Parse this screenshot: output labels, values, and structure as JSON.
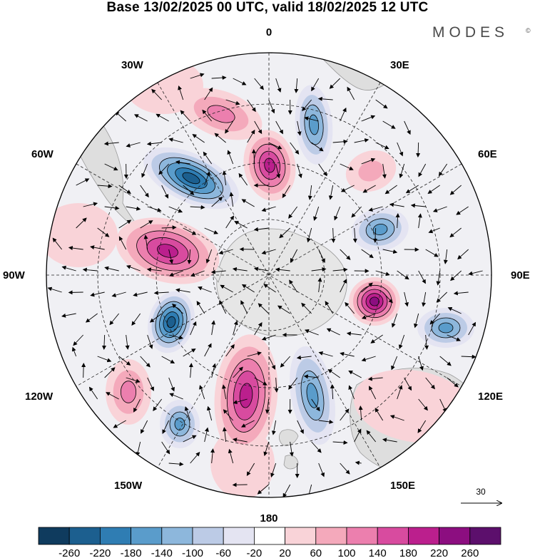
{
  "header": {
    "title": "Base 13/02/2025 00 UTC, valid 18/02/2025 12 UTC",
    "brand": "MODES",
    "brand_mark": "©"
  },
  "map": {
    "projection": "south-polar-stereographic",
    "longitude_labels": [
      "0",
      "30E",
      "60E",
      "90E",
      "120E",
      "150E",
      "180",
      "150W",
      "120W",
      "90W",
      "60W",
      "30W"
    ],
    "reference_vector": {
      "value": "30"
    }
  },
  "colorbar": {
    "tick_labels": [
      "-260",
      "-220",
      "-180",
      "-140",
      "-100",
      "-60",
      "-20",
      "20",
      "60",
      "100",
      "140",
      "180",
      "220",
      "260"
    ],
    "colors": [
      "#0f3b5e",
      "#1c5f8f",
      "#2f7db3",
      "#5a9ccb",
      "#8db7dc",
      "#bccbe6",
      "#e4e4f2",
      "#ffffff",
      "#f9d3d8",
      "#f4a9bb",
      "#ec7fae",
      "#d84b9f",
      "#bb1f8d",
      "#8c0e80",
      "#5c0f6c"
    ]
  },
  "anomalies": [
    {
      "id": "a1",
      "value": -240,
      "rx": 72,
      "ry": 34,
      "rot": 25
    },
    {
      "id": "a2",
      "value": 220,
      "rx": 36,
      "ry": 50,
      "rot": -10
    },
    {
      "id": "a3",
      "value": 140,
      "rx": 60,
      "ry": 32,
      "rot": 20
    },
    {
      "id": "a4",
      "value": -150,
      "rx": 26,
      "ry": 56,
      "rot": -5
    },
    {
      "id": "a5",
      "value": 80,
      "rx": 36,
      "ry": 28,
      "rot": -20
    },
    {
      "id": "a6",
      "value": -180,
      "rx": 40,
      "ry": 30,
      "rot": -10
    },
    {
      "id": "a7",
      "value": 210,
      "rx": 74,
      "ry": 44,
      "rot": 15
    },
    {
      "id": "a8",
      "value": 260,
      "rx": 36,
      "ry": 34,
      "rot": 0
    },
    {
      "id": "a9",
      "value": -160,
      "rx": 40,
      "ry": 28,
      "rot": 0
    },
    {
      "id": "a10",
      "value": -230,
      "rx": 32,
      "ry": 44,
      "rot": 15
    },
    {
      "id": "a11",
      "value": 200,
      "rx": 44,
      "ry": 86,
      "rot": 5
    },
    {
      "id": "a12",
      "value": -160,
      "rx": 30,
      "ry": 70,
      "rot": -10
    },
    {
      "id": "a13",
      "value": 120,
      "rx": 32,
      "ry": 46,
      "rot": 0
    },
    {
      "id": "a14",
      "value": -170,
      "rx": 28,
      "ry": 34,
      "rot": 0
    },
    {
      "id": "a15",
      "value": 60,
      "rx": 85,
      "ry": 50,
      "rot": 10
    },
    {
      "id": "a16",
      "value": 40,
      "rx": 55,
      "ry": 40,
      "rot": 0
    },
    {
      "id": "a17",
      "value": 50,
      "rx": 55,
      "ry": 45,
      "rot": 0
    },
    {
      "id": "a18",
      "value": 60,
      "rx": 45,
      "ry": 50,
      "rot": 0
    }
  ]
}
